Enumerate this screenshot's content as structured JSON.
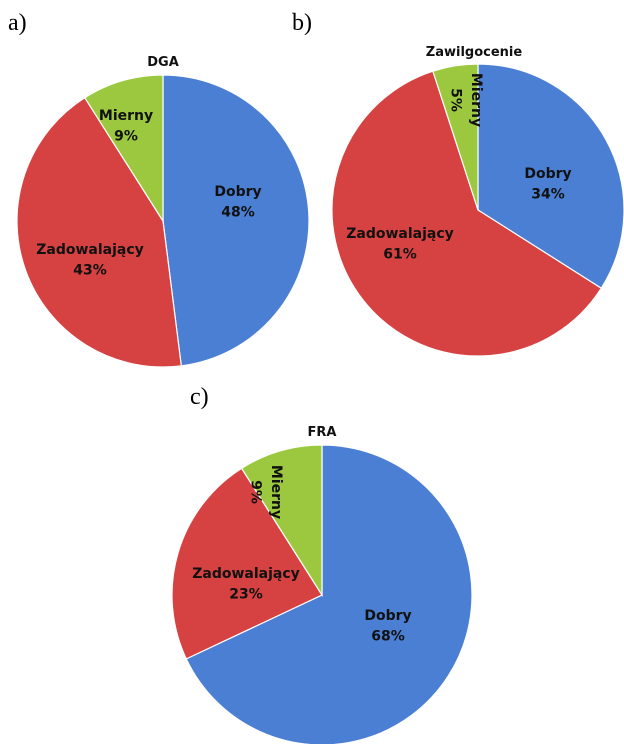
{
  "chart_data": [
    {
      "type": "pie",
      "panel": "a)",
      "title": "DGA",
      "slices": [
        {
          "label": "Dobry",
          "value": 48,
          "display": "48%",
          "color": "#4a7fd3"
        },
        {
          "label": "Zadowalający",
          "value": 43,
          "display": "43%",
          "color": "#d64141"
        },
        {
          "label": "Mierny",
          "value": 9,
          "display": "9%",
          "color": "#9bc83e"
        }
      ]
    },
    {
      "type": "pie",
      "panel": "b)",
      "title": "Zawilgocenie",
      "slices": [
        {
          "label": "Dobry",
          "value": 34,
          "display": "34%",
          "color": "#4a7fd3"
        },
        {
          "label": "Zadowalający",
          "value": 61,
          "display": "61%",
          "color": "#d64141"
        },
        {
          "label": "Mierny",
          "value": 5,
          "display": "5%",
          "color": "#9bc83e"
        }
      ]
    },
    {
      "type": "pie",
      "panel": "c)",
      "title": "FRA",
      "slices": [
        {
          "label": "Dobry",
          "value": 68,
          "display": "68%",
          "color": "#4a7fd3"
        },
        {
          "label": "Zadowalający",
          "value": 23,
          "display": "23%",
          "color": "#d64141"
        },
        {
          "label": "Mierny",
          "value": 9,
          "display": "9%",
          "color": "#9bc83e"
        }
      ]
    }
  ]
}
